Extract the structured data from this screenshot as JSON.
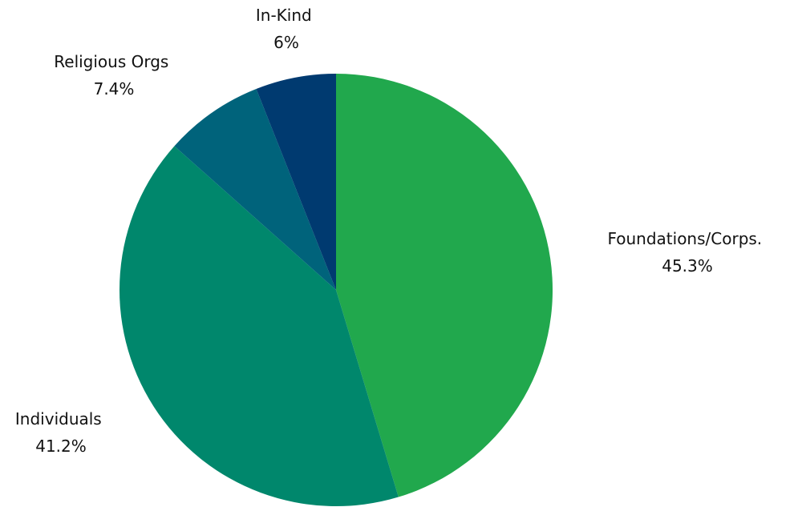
{
  "chart_data": {
    "type": "pie",
    "slices": [
      {
        "label": "Foundations/Corps.",
        "value": 45.3,
        "display": "45.3%",
        "color": "#21a84d"
      },
      {
        "label": "Individuals",
        "value": 41.2,
        "display": "41.2%",
        "color": "#00876c"
      },
      {
        "label": "Religious Orgs",
        "value": 7.4,
        "display": "7.4%",
        "color": "#00637b"
      },
      {
        "label": "In-Kind",
        "value": 6,
        "display": "6%",
        "color": "#003a70"
      }
    ],
    "start_angle": "12 o'clock",
    "direction": "clockwise",
    "legend": "none"
  }
}
